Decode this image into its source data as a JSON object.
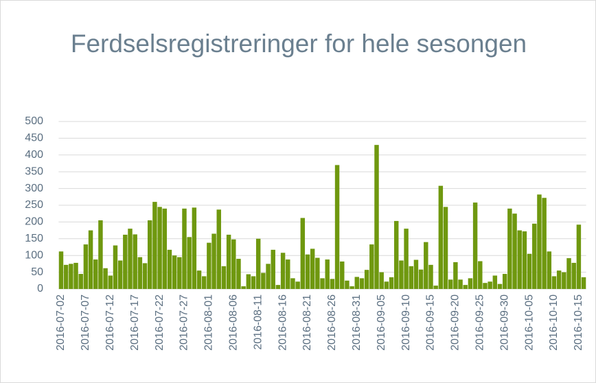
{
  "chart_data": {
    "type": "bar",
    "title": "Ferdselsregistreringer for hele sesongen",
    "categories": [
      "2016-07-02",
      null,
      null,
      null,
      null,
      "2016-07-07",
      null,
      null,
      null,
      null,
      "2016-07-12",
      null,
      null,
      null,
      null,
      "2016-07-17",
      null,
      null,
      null,
      null,
      "2016-07-22",
      null,
      null,
      null,
      null,
      "2016-07-27",
      null,
      null,
      null,
      null,
      "2016-08-01",
      null,
      null,
      null,
      null,
      "2016-08-06",
      null,
      null,
      null,
      null,
      "2016-08-11",
      null,
      null,
      null,
      null,
      "2016-08-16",
      null,
      null,
      null,
      null,
      "2016-08-21",
      null,
      null,
      null,
      null,
      "2016-08-26",
      null,
      null,
      null,
      null,
      "2016-08-31",
      null,
      null,
      null,
      null,
      "2016-09-05",
      null,
      null,
      null,
      null,
      "2016-09-10",
      null,
      null,
      null,
      null,
      "2016-09-15",
      null,
      null,
      null,
      null,
      "2016-09-20",
      null,
      null,
      null,
      null,
      "2016-09-25",
      null,
      null,
      null,
      null,
      "2016-09-30",
      null,
      null,
      null,
      null,
      "2016-10-05",
      null,
      null,
      null,
      null,
      "2016-10-10",
      null,
      null,
      null,
      null,
      "2016-10-15",
      null
    ],
    "values": [
      112,
      72,
      75,
      78,
      45,
      133,
      175,
      88,
      205,
      62,
      40,
      130,
      85,
      162,
      180,
      163,
      95,
      77,
      205,
      260,
      245,
      240,
      117,
      100,
      95,
      240,
      155,
      243,
      55,
      38,
      138,
      165,
      237,
      68,
      162,
      148,
      90,
      8,
      44,
      38,
      150,
      48,
      75,
      117,
      12,
      108,
      88,
      32,
      22,
      212,
      103,
      120,
      93,
      32,
      88,
      30,
      370,
      82,
      25,
      8,
      36,
      32,
      57,
      133,
      430,
      50,
      22,
      35,
      203,
      85,
      180,
      68,
      87,
      58,
      140,
      72,
      10,
      308,
      245,
      28,
      80,
      28,
      12,
      32,
      258,
      83,
      18,
      22,
      40,
      15,
      45,
      240,
      225,
      175,
      172,
      105,
      195,
      282,
      272,
      112,
      38,
      55,
      50,
      92,
      78,
      192,
      35
    ],
    "color": "#6f980f",
    "ylim": [
      0,
      500
    ],
    "yticks": [
      0,
      50,
      100,
      150,
      200,
      250,
      300,
      350,
      400,
      450,
      500
    ],
    "grid": true
  }
}
